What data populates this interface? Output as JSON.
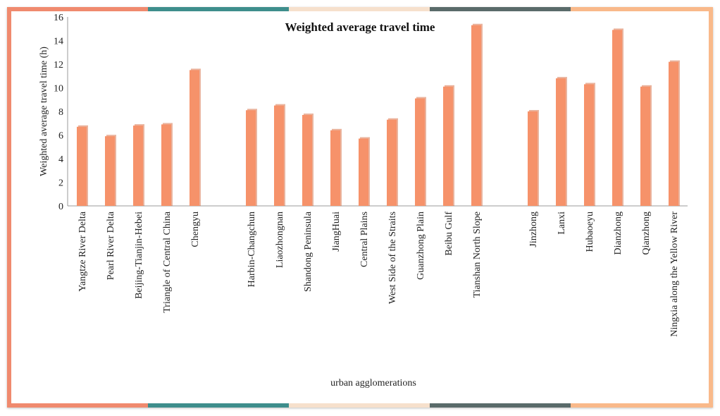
{
  "chart_data": {
    "type": "bar",
    "title": "Weighted average travel time",
    "xlabel": "urban agglomerations",
    "ylabel": "Weighted average travel time (h)",
    "ylim": [
      0,
      16
    ],
    "yticks": [
      0,
      2,
      4,
      6,
      8,
      10,
      12,
      14,
      16
    ],
    "grid": false,
    "groups": [
      {
        "categories": [
          "Yangtze River Delta",
          "Pearl River Delta",
          "Beijing-Tianjin-Hebei",
          "Triangle of Central China",
          "Chengyu"
        ],
        "values": [
          6.7,
          5.9,
          6.8,
          6.9,
          11.5
        ]
      },
      {
        "categories": [
          "Harbin-Changchun",
          "Liaozhongnan",
          "Shandong Peninsula",
          "JiangHuai",
          "Central Plains",
          "West Side of the Straits",
          "Guanzhong Plain",
          "Beibu Gulf",
          "Tianshan North Slope"
        ],
        "values": [
          8.1,
          8.5,
          7.7,
          6.4,
          5.7,
          7.3,
          9.1,
          10.1,
          15.3
        ]
      },
      {
        "categories": [
          "Jinzhong",
          "Lanxi",
          "Hubaoeyu",
          "Dianzhong",
          "Qianzhong",
          "Ningxia along the Yellow River"
        ],
        "values": [
          8.0,
          10.8,
          10.3,
          14.9,
          10.1,
          12.2
        ]
      }
    ],
    "colors": {
      "bar": "#F6926A",
      "bar_shadow": "#D9764F",
      "frame_segments": [
        "#F08A6E",
        "#3E8E8C",
        "#F6E0CC",
        "#5A6B6A",
        "#F9B98A"
      ]
    }
  }
}
